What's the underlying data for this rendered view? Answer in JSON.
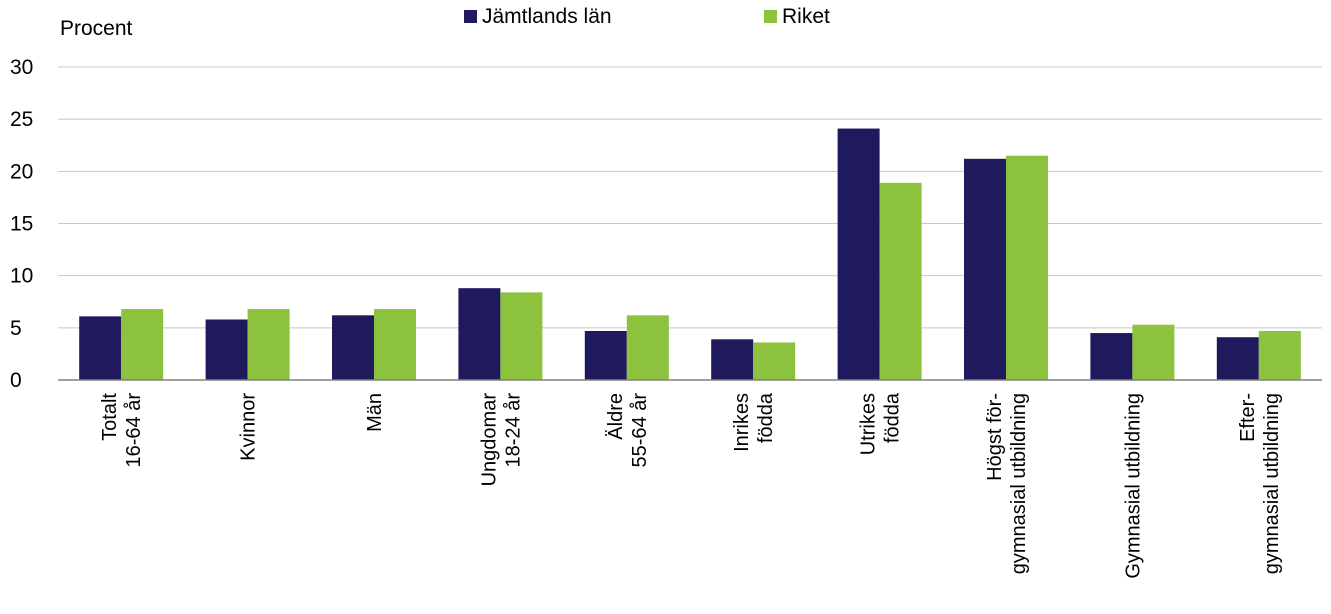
{
  "chart_data": {
    "type": "bar",
    "ylabel": "Procent",
    "ylim": [
      0,
      30
    ],
    "yticks": [
      0,
      5,
      10,
      15,
      20,
      25,
      30
    ],
    "grid": true,
    "legend_position": "top-center",
    "categories": [
      [
        "Totalt",
        "16-64 år"
      ],
      [
        "Kvinnor"
      ],
      [
        "Män"
      ],
      [
        "Ungdomar",
        "18-24 år"
      ],
      [
        "Äldre",
        "55-64 år"
      ],
      [
        "Inrikes",
        "födda"
      ],
      [
        "Utrikes",
        "födda"
      ],
      [
        "Högst för-",
        "gymnasial utbildning"
      ],
      [
        "Gymnasial utbildning"
      ],
      [
        "Efter-",
        "gymnasial utbildning"
      ]
    ],
    "series": [
      {
        "name": "Jämtlands län",
        "color": "#1f1a5e",
        "values": [
          6.1,
          5.8,
          6.2,
          8.8,
          4.7,
          3.9,
          24.1,
          21.2,
          4.5,
          4.1
        ]
      },
      {
        "name": "Riket",
        "color": "#8dc23f",
        "values": [
          6.8,
          6.8,
          6.8,
          8.4,
          6.2,
          3.6,
          18.9,
          21.5,
          5.3,
          4.7
        ]
      }
    ]
  }
}
